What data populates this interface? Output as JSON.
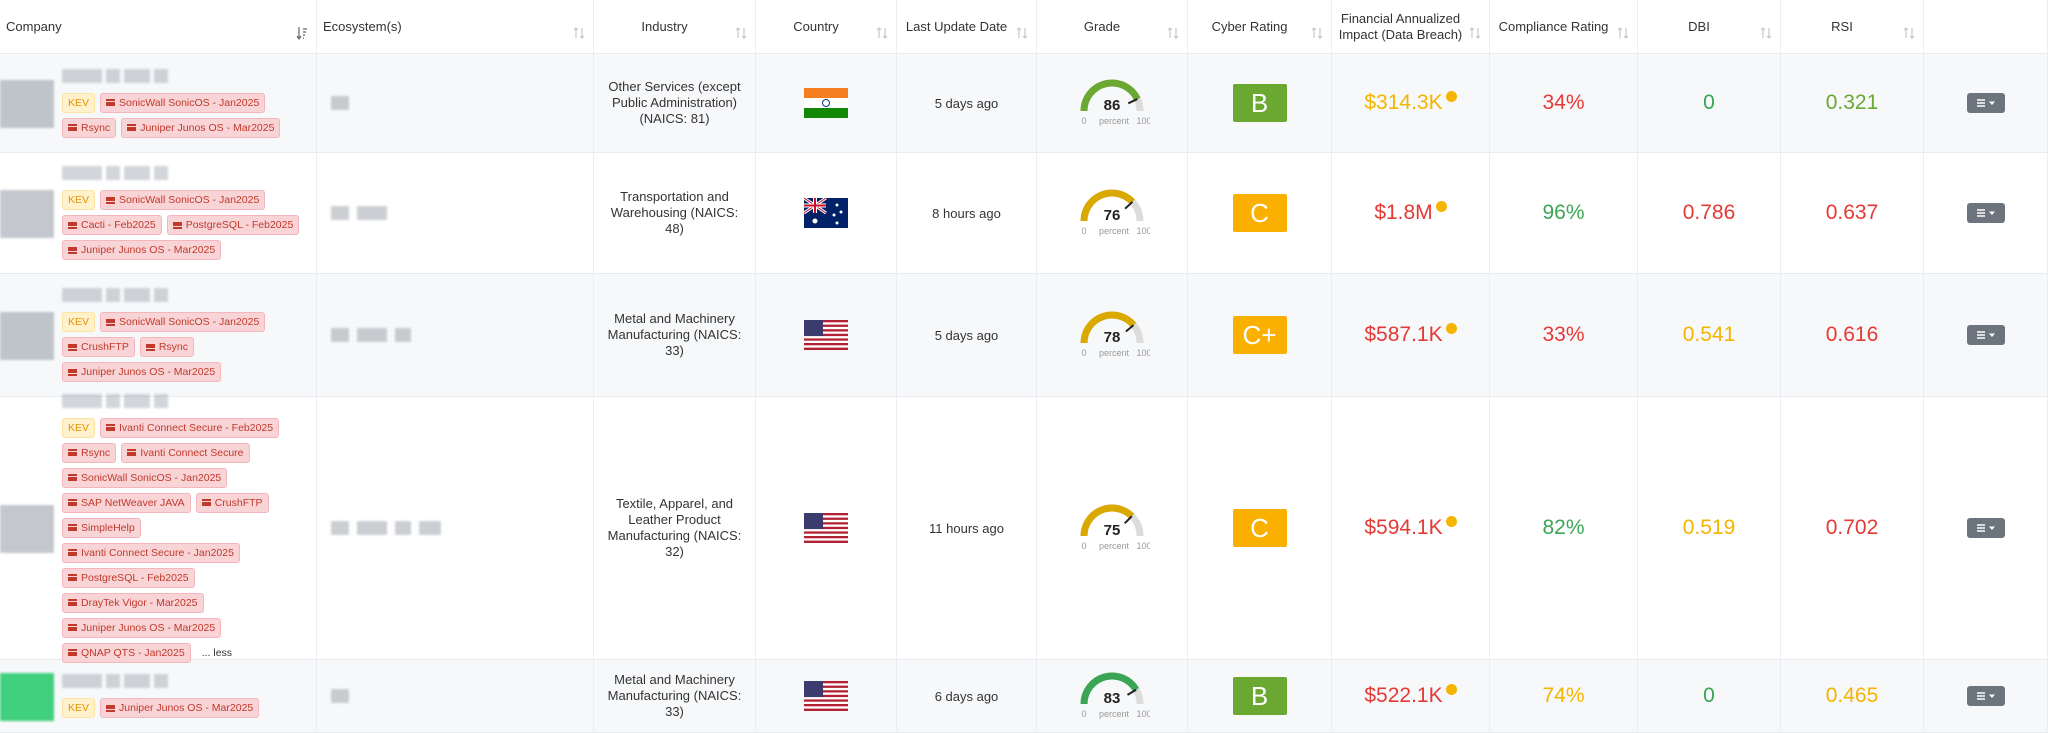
{
  "columns": [
    "Company",
    "Ecosystem(s)",
    "Industry",
    "Country",
    "Last Update Date",
    "Grade",
    "Cyber Rating",
    "Financial Annualized Impact (Data Breach)",
    "Compliance Rating",
    "DBI",
    "RSI"
  ],
  "grade_scale": {
    "min": 0,
    "unit": "percent",
    "max": 100
  },
  "rows": [
    {
      "kev": "KEV",
      "tags": [
        "SonicWall SonicOS - Jan2025",
        "Rsync",
        "Juniper Junos OS - Mar2025"
      ],
      "industry": "Other Services (except Public Administration) (NAICS: 81)",
      "last_update": "5 days ago",
      "grade": 86,
      "grade_color": "#6aa832",
      "cyber_rating": "B",
      "rating_color": "#6aa832",
      "financial": "$314.3K",
      "financial_color": "#f5b400",
      "compliance": "34%",
      "compliance_color": "#e53935",
      "dbi": 0,
      "dbi_color": "#3aa655",
      "rsi": 0.321,
      "rsi_color": "#6aa832"
    },
    {
      "kev": "KEV",
      "tags": [
        "SonicWall SonicOS - Jan2025",
        "Cacti - Feb2025",
        "PostgreSQL - Feb2025",
        "Juniper Junos OS - Mar2025"
      ],
      "industry": "Transportation and Warehousing (NAICS: 48)",
      "last_update": "8 hours ago",
      "grade": 76,
      "grade_color": "#d9a900",
      "cyber_rating": "C",
      "rating_color": "#f9b000",
      "financial": "$1.8M",
      "financial_color": "#e53935",
      "compliance": "96%",
      "compliance_color": "#3aa655",
      "dbi": 0.786,
      "dbi_color": "#e53935",
      "rsi": 0.637,
      "rsi_color": "#e53935"
    },
    {
      "kev": "KEV",
      "tags": [
        "SonicWall SonicOS - Jan2025",
        "CrushFTP",
        "Rsync",
        "Juniper Junos OS - Mar2025"
      ],
      "industry": "Metal and Machinery Manufacturing (NAICS: 33)",
      "last_update": "5 days ago",
      "grade": 78,
      "grade_color": "#d9a900",
      "cyber_rating": "C+",
      "rating_color": "#f9b000",
      "financial": "$587.1K",
      "financial_color": "#e53935",
      "compliance": "33%",
      "compliance_color": "#e53935",
      "dbi": 0.541,
      "dbi_color": "#f5b400",
      "rsi": 0.616,
      "rsi_color": "#e53935"
    },
    {
      "kev": "KEV",
      "tags": [
        "Ivanti Connect Secure - Feb2025",
        "Rsync",
        "Ivanti Connect Secure",
        "SonicWall SonicOS - Jan2025",
        "SAP NetWeaver JAVA",
        "CrushFTP",
        "SimpleHelp",
        "Ivanti Connect Secure - Jan2025",
        "PostgreSQL - Feb2025",
        "DrayTek Vigor - Mar2025",
        "Juniper Junos OS - Mar2025",
        "QNAP QTS - Jan2025"
      ],
      "toggle": "... less",
      "industry": "Textile, Apparel, and Leather Product Manufacturing (NAICS: 32)",
      "last_update": "11 hours ago",
      "grade": 75,
      "grade_color": "#d9a900",
      "cyber_rating": "C",
      "rating_color": "#f9b000",
      "financial": "$594.1K",
      "financial_color": "#e53935",
      "compliance": "82%",
      "compliance_color": "#3aa655",
      "dbi": 0.519,
      "dbi_color": "#f5b400",
      "rsi": 0.702,
      "rsi_color": "#e53935"
    },
    {
      "kev": "KEV",
      "tags": [
        "Juniper Junos OS - Mar2025"
      ],
      "industry": "Metal and Machinery Manufacturing (NAICS: 33)",
      "last_update": "6 days ago",
      "grade": 83,
      "grade_color": "#3aa655",
      "cyber_rating": "B",
      "rating_color": "#6aa832",
      "financial": "$522.1K",
      "financial_color": "#e53935",
      "compliance": "74%",
      "compliance_color": "#f5b400",
      "dbi": 0,
      "dbi_color": "#3aa655",
      "rsi": 0.465,
      "rsi_color": "#f5b400"
    }
  ]
}
